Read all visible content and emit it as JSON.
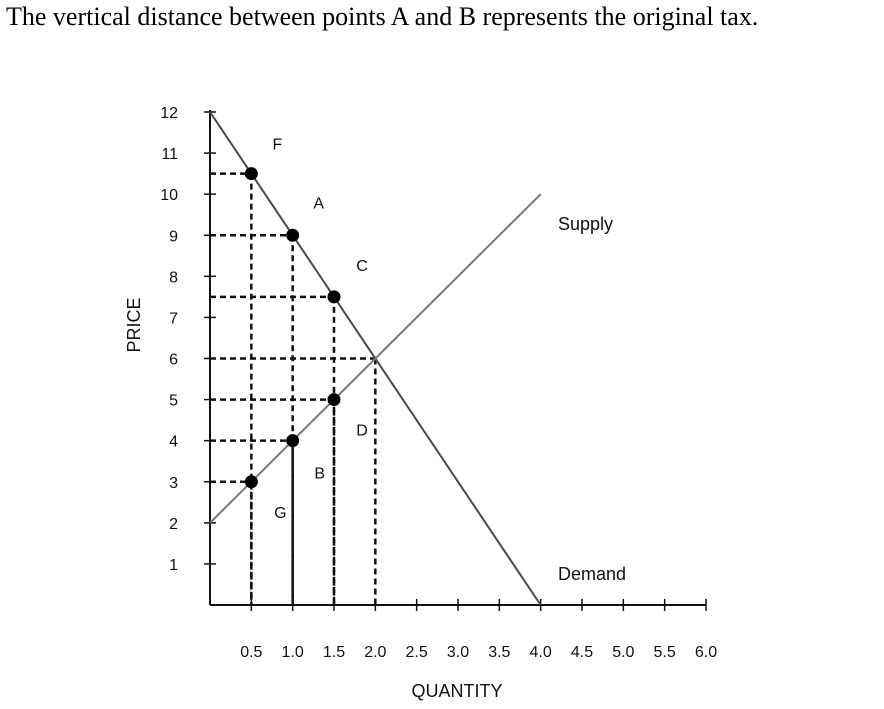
{
  "question": {
    "text": "The vertical distance between points A and B represents the original tax."
  },
  "chart_data": {
    "type": "line",
    "title": "",
    "xlabel": "QUANTITY",
    "ylabel": "PRICE",
    "xlim": [
      0,
      6.0
    ],
    "ylim": [
      0,
      12
    ],
    "x_ticks": [
      "0.5",
      "1.0",
      "1.5",
      "2.0",
      "2.5",
      "3.0",
      "3.5",
      "4.0",
      "4.5",
      "5.0",
      "5.5",
      "6.0"
    ],
    "y_ticks": [
      "1",
      "2",
      "3",
      "4",
      "5",
      "6",
      "7",
      "8",
      "9",
      "10",
      "11",
      "12"
    ],
    "grid": false,
    "series": [
      {
        "name": "Demand",
        "x": [
          0,
          4.0
        ],
        "y": [
          12,
          0
        ],
        "color": "#4a4a4a"
      },
      {
        "name": "Supply",
        "x": [
          0,
          4.0
        ],
        "y": [
          2,
          10
        ],
        "color": "#777777"
      }
    ],
    "points": [
      {
        "label": "F",
        "x": 0.5,
        "y": 10.5
      },
      {
        "label": "A",
        "x": 1.0,
        "y": 9
      },
      {
        "label": "C",
        "x": 1.5,
        "y": 7.5
      },
      {
        "label": "D",
        "x": 1.5,
        "y": 5
      },
      {
        "label": "B",
        "x": 1.0,
        "y": 4
      },
      {
        "label": "G",
        "x": 0.5,
        "y": 3
      }
    ],
    "equilibrium": {
      "x": 2.0,
      "y": 6
    },
    "guides": [
      {
        "x": 0.5,
        "y": 10.5
      },
      {
        "x": 1.0,
        "y": 9
      },
      {
        "x": 1.5,
        "y": 7.5
      },
      {
        "x": 2.0,
        "y": 6
      },
      {
        "x": 1.5,
        "y": 5
      },
      {
        "x": 1.0,
        "y": 4
      },
      {
        "x": 0.5,
        "y": 3
      }
    ]
  }
}
